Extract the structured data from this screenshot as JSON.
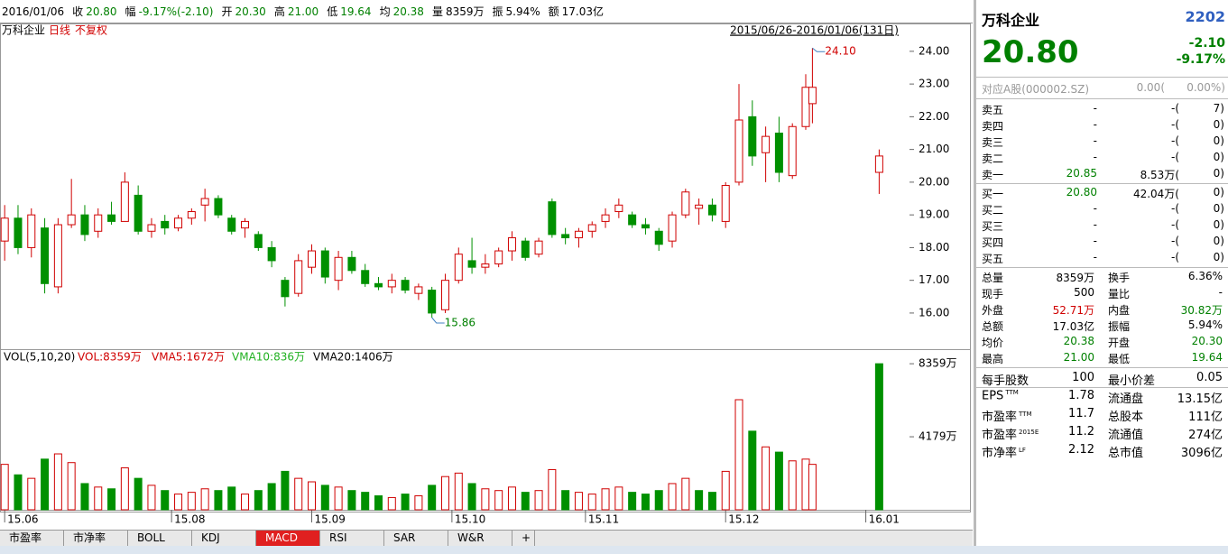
{
  "top_bar": {
    "date": "2016/01/06",
    "items": [
      {
        "label": "收",
        "value": "20.80",
        "color": "#008000"
      },
      {
        "label": "幅",
        "value": "-9.17%(-2.10)",
        "color": "#008000"
      },
      {
        "label": "开",
        "value": "20.30",
        "color": "#008000"
      },
      {
        "label": "高",
        "value": "21.00",
        "color": "#008000"
      },
      {
        "label": "低",
        "value": "19.64",
        "color": "#008000"
      },
      {
        "label": "均",
        "value": "20.38",
        "color": "#008000"
      },
      {
        "label": "量",
        "value": "8359万",
        "color": "#000"
      },
      {
        "label": "振",
        "value": "5.94%",
        "color": "#000"
      },
      {
        "label": "额",
        "value": "17.03亿",
        "color": "#000"
      }
    ]
  },
  "chart_data": {
    "type": "candlestick",
    "name": "万科企业",
    "period": "日线",
    "adjust": "不复权",
    "range": "2015/06/26-2016/01/06(131日)",
    "up_color": "#d00000",
    "down_color": "#009000",
    "x": [
      0,
      2,
      4,
      6,
      8,
      10,
      12,
      14,
      16,
      18,
      20,
      22,
      24,
      26,
      28,
      30,
      32,
      34,
      36,
      38,
      40,
      42,
      44,
      46,
      48,
      50,
      52,
      54,
      56,
      58,
      60,
      62,
      64,
      66,
      68,
      70,
      72,
      74,
      76,
      78,
      80,
      82,
      84,
      86,
      88,
      90,
      92,
      94,
      96,
      98,
      100,
      102,
      104,
      106,
      108,
      110,
      112,
      114,
      116,
      118,
      120,
      121,
      131
    ],
    "open": [
      18.2,
      18.9,
      18.0,
      18.6,
      16.8,
      18.7,
      19.0,
      18.5,
      19.0,
      18.8,
      19.6,
      18.5,
      18.8,
      18.6,
      18.9,
      19.3,
      19.5,
      18.9,
      18.6,
      18.4,
      18.0,
      17.0,
      16.6,
      17.4,
      17.9,
      17.0,
      17.7,
      17.3,
      16.9,
      16.8,
      17.0,
      16.6,
      16.7,
      16.1,
      17.0,
      17.6,
      17.4,
      17.5,
      17.9,
      18.2,
      17.8,
      19.4,
      18.4,
      18.3,
      18.5,
      18.8,
      19.1,
      19.0,
      18.7,
      18.5,
      18.2,
      19.0,
      19.2,
      19.3,
      18.8,
      20.0,
      22.0,
      20.9,
      21.5,
      20.2,
      21.7,
      22.4,
      20.3
    ],
    "high": [
      19.3,
      19.3,
      19.2,
      18.9,
      18.9,
      20.1,
      19.3,
      19.2,
      19.4,
      20.3,
      19.9,
      18.9,
      19.0,
      19.0,
      19.2,
      19.8,
      19.6,
      19.0,
      18.9,
      18.5,
      18.2,
      17.1,
      17.8,
      18.1,
      18.0,
      17.9,
      17.9,
      17.5,
      17.1,
      17.2,
      17.1,
      16.9,
      16.8,
      17.2,
      18.0,
      18.3,
      17.8,
      18.0,
      18.5,
      18.3,
      18.3,
      19.5,
      18.6,
      18.6,
      18.8,
      19.2,
      19.5,
      19.1,
      18.9,
      18.6,
      19.1,
      19.8,
      19.5,
      19.5,
      20.0,
      23.0,
      22.5,
      21.7,
      22.0,
      21.8,
      23.3,
      24.1,
      21.0
    ],
    "low": [
      17.6,
      17.8,
      17.7,
      16.6,
      16.6,
      18.6,
      18.2,
      18.3,
      18.7,
      18.8,
      18.4,
      18.3,
      18.4,
      18.5,
      18.7,
      18.8,
      18.9,
      18.4,
      18.3,
      17.9,
      17.4,
      16.2,
      16.5,
      17.2,
      16.9,
      16.7,
      17.2,
      16.8,
      16.7,
      16.6,
      16.6,
      16.4,
      15.86,
      16.0,
      16.9,
      17.2,
      17.2,
      17.4,
      17.6,
      17.6,
      17.7,
      18.3,
      18.1,
      18.0,
      18.3,
      18.6,
      18.9,
      18.6,
      18.4,
      17.9,
      18.0,
      18.9,
      18.7,
      18.8,
      18.6,
      19.9,
      20.5,
      20.0,
      20.0,
      20.1,
      21.6,
      21.8,
      19.64
    ],
    "close": [
      18.9,
      18.0,
      19.0,
      16.9,
      18.7,
      19.0,
      18.4,
      19.0,
      18.8,
      20.0,
      18.5,
      18.7,
      18.6,
      18.9,
      19.1,
      19.5,
      19.0,
      18.5,
      18.8,
      18.0,
      17.6,
      16.5,
      17.6,
      17.9,
      17.1,
      17.7,
      17.3,
      16.9,
      16.8,
      17.0,
      16.7,
      16.8,
      16.0,
      17.0,
      17.8,
      17.4,
      17.5,
      17.9,
      18.3,
      17.7,
      18.2,
      18.4,
      18.3,
      18.5,
      18.7,
      19.0,
      19.3,
      18.7,
      18.6,
      18.1,
      19.0,
      19.7,
      19.3,
      19.0,
      19.9,
      21.9,
      20.8,
      21.4,
      20.3,
      21.7,
      22.9,
      22.9,
      20.8
    ],
    "volume": [
      2600,
      2000,
      1800,
      2900,
      3200,
      2700,
      1500,
      1300,
      1200,
      2400,
      1800,
      1400,
      1100,
      900,
      1000,
      1200,
      1100,
      1300,
      900,
      1100,
      1500,
      2200,
      1800,
      1600,
      1400,
      1300,
      1100,
      1000,
      800,
      700,
      900,
      800,
      1400,
      1900,
      2100,
      1500,
      1200,
      1100,
      1300,
      1000,
      1100,
      2300,
      1100,
      1000,
      900,
      1200,
      1300,
      1000,
      900,
      1100,
      1500,
      1800,
      1100,
      1000,
      2200,
      6300,
      4500,
      3600,
      3300,
      2800,
      2900,
      2600,
      8359
    ],
    "xlim": [
      -0.7,
      144.6
    ],
    "xticks": [
      {
        "value": 0,
        "label": "15.06"
      },
      {
        "value": 25,
        "label": "15.08"
      },
      {
        "value": 46,
        "label": "15.09"
      },
      {
        "value": 67,
        "label": "15.10"
      },
      {
        "value": 87,
        "label": "15.11"
      },
      {
        "value": 108,
        "label": "15.12"
      },
      {
        "value": 129,
        "label": "16.01"
      }
    ],
    "ylim": [
      14.95,
      24.41
    ],
    "yticks": [
      {
        "value": 16,
        "label": "16.00"
      },
      {
        "value": 17,
        "label": "17.00"
      },
      {
        "value": 18,
        "label": "18.00"
      },
      {
        "value": 19,
        "label": "19.00"
      },
      {
        "value": 20,
        "label": "20.00"
      },
      {
        "value": 21,
        "label": "21.00"
      },
      {
        "value": 22,
        "label": "22.00"
      },
      {
        "value": 23,
        "label": "23.00"
      },
      {
        "value": 24,
        "label": "24.00"
      }
    ],
    "annotations": [
      {
        "x": 121,
        "value": 24.1,
        "label": "24.10"
      },
      {
        "x": 64,
        "value": 15.86,
        "label": "15.86"
      }
    ],
    "volume_legend": [
      "VOL(5,10,20)",
      "VOL:8359万",
      "VMA5:1672万",
      "VMA10:836万",
      "VMA20:1406万"
    ],
    "volume_ylim": [
      0,
      9140
    ],
    "volume_ticks": [
      {
        "value": 8359,
        "label": "8359万"
      },
      {
        "value": 4179,
        "label": "4179万"
      }
    ]
  },
  "tabs": [
    "市盈率",
    "市净率",
    "BOLL",
    "KDJ",
    "MACD",
    "RSI",
    "SAR",
    "W&R",
    "+"
  ],
  "active_tab": 4,
  "quote": {
    "name": "万科企业",
    "code": "2202",
    "price": "20.80",
    "change": "-2.10",
    "change_pct": "-9.17%",
    "a_share": "对应A股(000002.SZ)",
    "a_price": "0.00(",
    "a_pct": "0.00%)",
    "asks": [
      [
        "卖五",
        "-",
        "-(",
        "7)"
      ],
      [
        "卖四",
        "-",
        "-(",
        "0)"
      ],
      [
        "卖三",
        "-",
        "-(",
        "0)"
      ],
      [
        "卖二",
        "-",
        "-(",
        "0)"
      ],
      [
        "卖一",
        "20.85",
        "8.53万(",
        "0)"
      ]
    ],
    "bids": [
      [
        "买一",
        "20.80",
        "42.04万(",
        "0)"
      ],
      [
        "买二",
        "-",
        "-(",
        "0)"
      ],
      [
        "买三",
        "-",
        "-(",
        "0)"
      ],
      [
        "买四",
        "-",
        "-(",
        "0)"
      ],
      [
        "买五",
        "-",
        "-(",
        "0)"
      ]
    ],
    "stats": [
      {
        "label": "总量",
        "value": "8359万"
      },
      {
        "label": "换手",
        "value": "6.36%"
      },
      {
        "label": "现手",
        "value": "500"
      },
      {
        "label": "量比",
        "value": "-"
      },
      {
        "label": "外盘",
        "value": "52.71万",
        "color": "#d00000"
      },
      {
        "label": "内盘",
        "value": "30.82万",
        "color": "#008000"
      },
      {
        "label": "总额",
        "value": "17.03亿"
      },
      {
        "label": "振幅",
        "value": "5.94%"
      },
      {
        "label": "均价",
        "value": "20.38",
        "color": "#008000"
      },
      {
        "label": "开盘",
        "value": "20.30",
        "color": "#008000"
      },
      {
        "label": "最高",
        "value": "21.00",
        "color": "#008000"
      },
      {
        "label": "最低",
        "value": "19.64",
        "color": "#008000"
      }
    ],
    "fundamentals": [
      {
        "label": "每手股数",
        "value": "100"
      },
      {
        "label": "最小价差",
        "value": "0.05"
      },
      {
        "label": "EPS",
        "sup": "TTM",
        "value": "1.78"
      },
      {
        "label": "流通盘",
        "value": "13.15亿"
      },
      {
        "label": "市盈率",
        "sup": "TTM",
        "value": "11.7"
      },
      {
        "label": "总股本",
        "value": "111亿"
      },
      {
        "label": "市盈率",
        "sup": "2015E",
        "value": "11.2"
      },
      {
        "label": "流通值",
        "value": "274亿"
      },
      {
        "label": "市净率",
        "sup": "LF",
        "value": "2.12"
      },
      {
        "label": "总市值",
        "value": "3096亿"
      }
    ]
  }
}
